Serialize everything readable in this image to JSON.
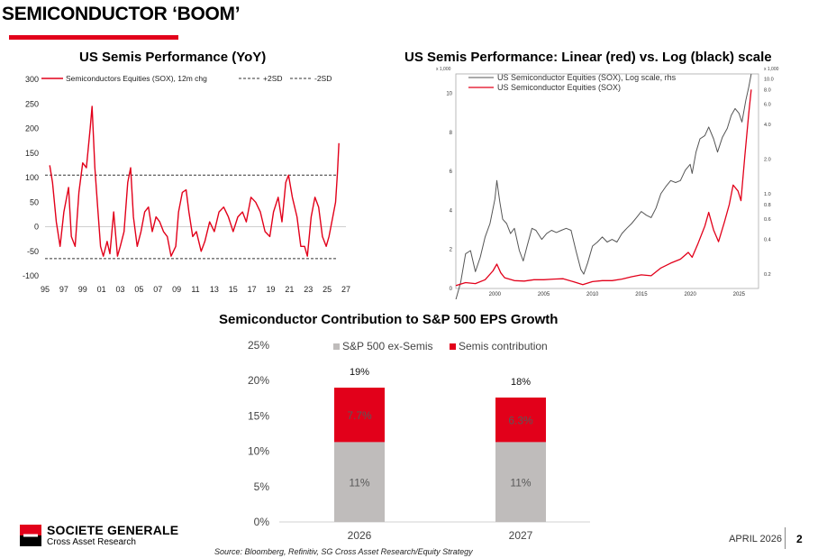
{
  "header": {
    "title": "SEMICONDUCTOR ‘BOOM’"
  },
  "footer": {
    "brand": "SOCIETE GENERALE",
    "brand_sub": "Cross Asset Research",
    "date": "APRIL 2026",
    "page": "2",
    "source": "Source: Bloomberg, Refinitiv, SG Cross Asset Research/Equity Strategy"
  },
  "colors": {
    "accent": "#e2001a",
    "grey_bar": "#bfbcbb",
    "black_line": "#555555"
  },
  "chart_data": [
    {
      "type": "line",
      "title": "US Semis Performance (YoY)",
      "legend": [
        "Semiconductors Equities (SOX), 12m chg",
        "+2SD",
        "-2SD"
      ],
      "legend_placement": "top",
      "x_tick_labels": [
        "95",
        "97",
        "99",
        "01",
        "03",
        "05",
        "07",
        "09",
        "11",
        "13",
        "15",
        "17",
        "19",
        "21",
        "23",
        "25",
        "27"
      ],
      "y_ticks": [
        -100,
        -50,
        0,
        50,
        100,
        150,
        200,
        250,
        300
      ],
      "ylim": [
        -100,
        300
      ],
      "xlim": [
        1995,
        2027
      ],
      "plus_2sd": 105,
      "minus_2sd": -65,
      "series": [
        {
          "name": "Semiconductors Equities (SOX), 12m chg",
          "color": "#e2001a",
          "x": [
            1995.5,
            1995.8,
            1996.2,
            1996.6,
            1997.0,
            1997.5,
            1997.8,
            1998.2,
            1998.6,
            1999.0,
            1999.4,
            1999.8,
            2000.0,
            2000.3,
            2000.6,
            2000.9,
            2001.2,
            2001.6,
            2001.9,
            2002.3,
            2002.7,
            2003.0,
            2003.4,
            2003.8,
            2004.1,
            2004.4,
            2004.8,
            2005.2,
            2005.6,
            2006.0,
            2006.4,
            2006.8,
            2007.2,
            2007.6,
            2008.0,
            2008.4,
            2008.9,
            2009.2,
            2009.6,
            2010.0,
            2010.3,
            2010.7,
            2011.1,
            2011.6,
            2012.0,
            2012.5,
            2013.0,
            2013.5,
            2014.0,
            2014.5,
            2015.0,
            2015.5,
            2016.0,
            2016.4,
            2016.9,
            2017.4,
            2017.9,
            2018.4,
            2018.9,
            2019.3,
            2019.8,
            2020.2,
            2020.6,
            2020.9,
            2021.3,
            2021.8,
            2022.2,
            2022.6,
            2022.9,
            2023.3,
            2023.7,
            2024.1,
            2024.5,
            2024.9,
            2025.2,
            2025.6,
            2025.9,
            2026.1,
            2026.25
          ],
          "values": [
            125,
            90,
            10,
            -40,
            30,
            80,
            -20,
            -40,
            70,
            130,
            120,
            200,
            245,
            120,
            40,
            -40,
            -60,
            -30,
            -55,
            30,
            -60,
            -40,
            -10,
            90,
            120,
            20,
            -40,
            -10,
            30,
            40,
            -10,
            20,
            10,
            -10,
            -20,
            -60,
            -40,
            30,
            70,
            75,
            30,
            -20,
            -10,
            -50,
            -30,
            10,
            -10,
            30,
            40,
            20,
            -10,
            20,
            30,
            10,
            60,
            50,
            30,
            -10,
            -20,
            30,
            60,
            10,
            90,
            105,
            60,
            20,
            -40,
            -40,
            -60,
            20,
            60,
            40,
            -20,
            -40,
            -20,
            20,
            50,
            110,
            170
          ]
        }
      ]
    },
    {
      "type": "line",
      "title": "US Semis Performance: Linear (red) vs. Log (black) scale",
      "legend": [
        "US Semiconductor Equities (SOX), Log scale, rhs",
        "US Semiconductor Equities (SOX)"
      ],
      "legend_placement": "top-left",
      "x_tick_labels": [
        "2000",
        "2005",
        "2010",
        "2015",
        "2020",
        "2025"
      ],
      "left_axis_unit": "x 1,000",
      "right_axis_unit": "x 1,000",
      "left_ticks": [
        0,
        2,
        4,
        6,
        8,
        10
      ],
      "left_ylim": [
        0,
        11
      ],
      "right_ticks": [
        0.2,
        0.4,
        0.6,
        0.8,
        1.0,
        2.0,
        4.0,
        6.0,
        8.0,
        10.0
      ],
      "right_ylim": [
        0.15,
        11
      ],
      "xlim": [
        1996,
        2027
      ],
      "series": [
        {
          "name": "US Semiconductor Equities (SOX), Log scale, rhs",
          "color": "#555555",
          "axis": "right",
          "x": [
            1996.0,
            1996.5,
            1997.0,
            1997.5,
            1998.0,
            1998.5,
            1999.0,
            1999.5,
            2000.0,
            2000.2,
            2000.5,
            2000.8,
            2001.2,
            2001.6,
            2002.0,
            2002.5,
            2002.9,
            2003.3,
            2003.8,
            2004.2,
            2004.8,
            2005.3,
            2005.8,
            2006.3,
            2006.8,
            2007.3,
            2007.8,
            2008.3,
            2008.8,
            2009.1,
            2009.5,
            2010.0,
            2010.5,
            2011.0,
            2011.5,
            2012.0,
            2012.5,
            2013.0,
            2013.5,
            2014.0,
            2014.5,
            2015.0,
            2015.5,
            2016.0,
            2016.5,
            2017.0,
            2017.5,
            2018.0,
            2018.5,
            2019.0,
            2019.5,
            2020.0,
            2020.2,
            2020.6,
            2021.0,
            2021.5,
            2021.9,
            2022.4,
            2022.8,
            2023.3,
            2023.8,
            2024.2,
            2024.6,
            2025.0,
            2025.3,
            2025.7,
            2026.0,
            2026.25
          ],
          "values": [
            0.12,
            0.17,
            0.3,
            0.32,
            0.21,
            0.28,
            0.42,
            0.55,
            0.9,
            1.3,
            0.85,
            0.6,
            0.55,
            0.45,
            0.5,
            0.32,
            0.26,
            0.35,
            0.5,
            0.48,
            0.4,
            0.45,
            0.48,
            0.46,
            0.48,
            0.5,
            0.48,
            0.32,
            0.22,
            0.2,
            0.25,
            0.35,
            0.38,
            0.42,
            0.38,
            0.4,
            0.38,
            0.45,
            0.5,
            0.55,
            0.62,
            0.7,
            0.65,
            0.62,
            0.75,
            1.0,
            1.15,
            1.3,
            1.25,
            1.3,
            1.6,
            1.8,
            1.5,
            2.3,
            3.0,
            3.2,
            3.8,
            3.0,
            2.3,
            3.1,
            3.7,
            4.8,
            5.5,
            5.0,
            4.2,
            6.5,
            8.5,
            11.0
          ]
        },
        {
          "name": "US Semiconductor Equities (SOX)",
          "color": "#e2001a",
          "axis": "left",
          "x": [
            1996.0,
            1997.0,
            1998.0,
            1999.0,
            1999.8,
            2000.2,
            2000.6,
            2001.0,
            2002.0,
            2003.0,
            2004.0,
            2005.0,
            2006.0,
            2007.0,
            2008.0,
            2009.0,
            2010.0,
            2011.0,
            2012.0,
            2013.0,
            2014.0,
            2015.0,
            2016.0,
            2017.0,
            2018.0,
            2019.0,
            2019.8,
            2020.2,
            2020.8,
            2021.5,
            2021.9,
            2022.4,
            2022.9,
            2023.5,
            2024.0,
            2024.4,
            2024.9,
            2025.2,
            2025.6,
            2026.0,
            2026.25
          ],
          "values": [
            0.15,
            0.3,
            0.25,
            0.45,
            0.9,
            1.25,
            0.8,
            0.55,
            0.4,
            0.38,
            0.45,
            0.45,
            0.48,
            0.5,
            0.35,
            0.2,
            0.35,
            0.4,
            0.4,
            0.48,
            0.6,
            0.7,
            0.65,
            1.05,
            1.3,
            1.5,
            1.85,
            1.6,
            2.3,
            3.2,
            3.9,
            3.0,
            2.4,
            3.4,
            4.3,
            5.3,
            5.0,
            4.5,
            6.8,
            9.0,
            10.2
          ]
        }
      ]
    },
    {
      "type": "bar",
      "stacked": true,
      "title": "Semiconductor Contribution to S&P 500 EPS Growth",
      "categories": [
        "2026",
        "2027"
      ],
      "y_tick_labels": [
        "0%",
        "5%",
        "10%",
        "15%",
        "20%",
        "25%"
      ],
      "ylim": [
        0,
        25
      ],
      "legend_placement": "top",
      "totals": [
        "19%",
        "18%"
      ],
      "series": [
        {
          "name": "S&P 500 ex-Semis",
          "color": "#bfbcbb",
          "values": [
            11.3,
            11.3
          ],
          "labels": [
            "11%",
            "11%"
          ]
        },
        {
          "name": "Semis contribution",
          "color": "#e2001a",
          "values": [
            7.7,
            6.3
          ],
          "labels": [
            "7.7%",
            "6.3%"
          ]
        }
      ]
    }
  ]
}
